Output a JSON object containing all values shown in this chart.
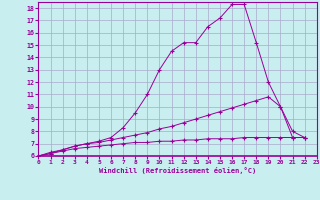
{
  "xlabel": "Windchill (Refroidissement éolien,°C)",
  "bg_color": "#c8eef0",
  "line_color": "#990099",
  "grid_color": "#aaaacc",
  "xlim": [
    0,
    23
  ],
  "ylim": [
    6,
    18.5
  ],
  "xticks": [
    0,
    1,
    2,
    3,
    4,
    5,
    6,
    7,
    8,
    9,
    10,
    11,
    12,
    13,
    14,
    15,
    16,
    17,
    18,
    19,
    20,
    21,
    22,
    23
  ],
  "yticks": [
    6,
    7,
    8,
    9,
    10,
    11,
    12,
    13,
    14,
    15,
    16,
    17,
    18
  ],
  "line1_x": [
    0,
    1,
    2,
    3,
    4,
    5,
    6,
    7,
    8,
    9,
    10,
    11,
    12,
    13,
    14,
    15,
    16,
    17,
    18,
    19,
    20,
    21,
    22
  ],
  "line1_y": [
    6.0,
    6.2,
    6.5,
    6.8,
    7.0,
    7.2,
    7.5,
    8.3,
    9.5,
    11.0,
    13.0,
    14.5,
    15.2,
    15.2,
    16.5,
    17.2,
    18.3,
    18.3,
    15.2,
    12.0,
    10.0,
    7.5,
    7.5
  ],
  "line2_x": [
    0,
    1,
    2,
    3,
    4,
    5,
    6,
    7,
    8,
    9,
    10,
    11,
    12,
    13,
    14,
    15,
    16,
    17,
    18,
    19,
    20,
    21,
    22
  ],
  "line2_y": [
    6.0,
    6.3,
    6.5,
    6.8,
    7.0,
    7.1,
    7.3,
    7.5,
    7.7,
    7.9,
    8.2,
    8.4,
    8.7,
    9.0,
    9.3,
    9.6,
    9.9,
    10.2,
    10.5,
    10.8,
    10.0,
    8.0,
    7.5
  ],
  "line3_x": [
    0,
    1,
    2,
    3,
    4,
    5,
    6,
    7,
    8,
    9,
    10,
    11,
    12,
    13,
    14,
    15,
    16,
    17,
    18,
    19,
    20,
    21,
    22
  ],
  "line3_y": [
    6.0,
    6.2,
    6.4,
    6.6,
    6.7,
    6.8,
    6.9,
    7.0,
    7.1,
    7.1,
    7.2,
    7.2,
    7.3,
    7.3,
    7.4,
    7.4,
    7.4,
    7.5,
    7.5,
    7.5,
    7.5,
    7.5,
    7.5
  ]
}
